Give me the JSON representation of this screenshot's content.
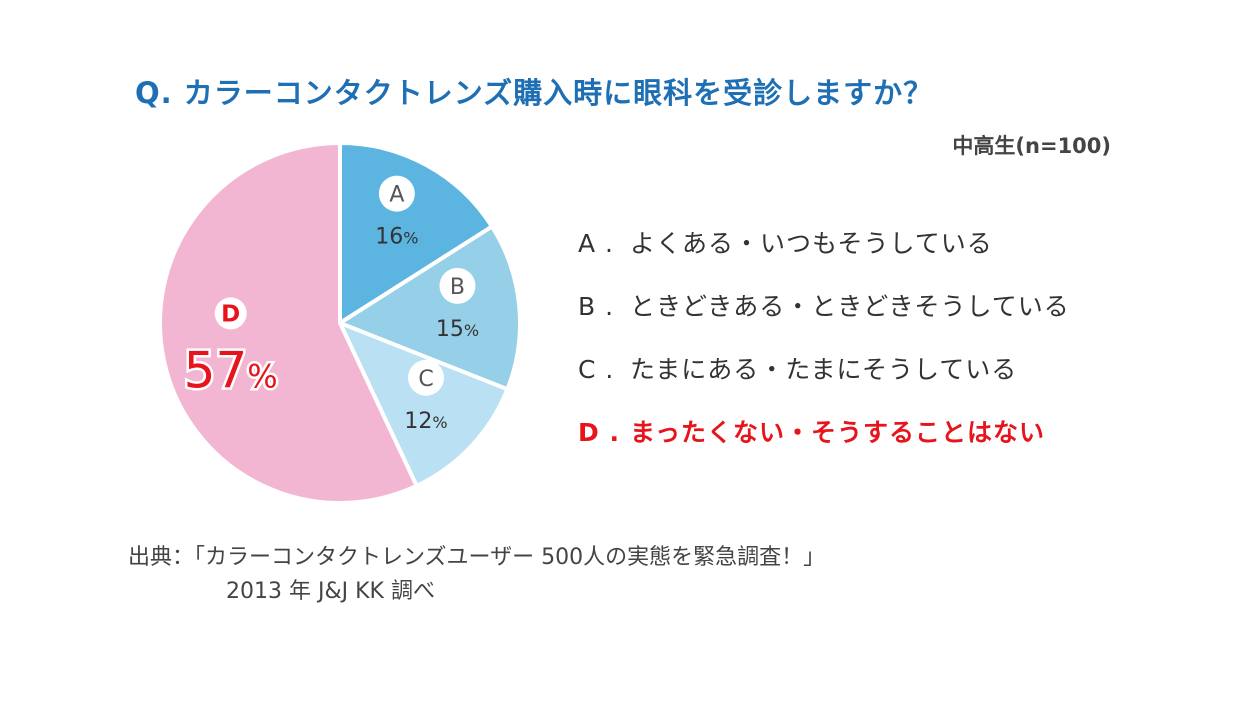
{
  "title": "Q. カラーコンタクトレンズ購入時に眼科を受診しますか？",
  "subtitle": "中高生(n=100)",
  "colors": {
    "title": "#1e6fb4",
    "highlight": "#e8141c",
    "text": "#333333"
  },
  "chart_data": {
    "type": "pie",
    "title": "Q. カラーコンタクトレンズ購入時に眼科を受診しますか？",
    "note": "中高生(n=100)",
    "slices": [
      {
        "key": "A",
        "label": "よくある・いつもそうしている",
        "value": 16,
        "value_label": "16%",
        "color": "#5bb5e0",
        "highlight": false
      },
      {
        "key": "B",
        "label": "ときどきある・ときどきそうしている",
        "value": 15,
        "value_label": "15%",
        "color": "#96cfe8",
        "highlight": false
      },
      {
        "key": "C",
        "label": "たまにある・たまにそうしている",
        "value": 12,
        "value_label": "12%",
        "color": "#b9e0f3",
        "highlight": false
      },
      {
        "key": "D",
        "label": "まったくない・そうすることはない",
        "value": 57,
        "value_label": "57%",
        "color": "#f3b6d2",
        "highlight": true
      }
    ],
    "start": "12 o'clock",
    "direction": "clockwise",
    "legend_position": "right"
  },
  "legend": {
    "items": [
      {
        "key": "A .",
        "text": "よくある・いつもそうしている"
      },
      {
        "key": "B .",
        "text": "ときどきある・ときどきそうしている"
      },
      {
        "key": "C .",
        "text": "たまにある・たまにそうしている"
      },
      {
        "key": "D .",
        "text": "まったくない・そうすることはない"
      }
    ]
  },
  "source": {
    "line1": "出典：「カラーコンタクトレンズユーザー 500人の実態を緊急調査！」",
    "line2": "2013 年  J&J KK 調べ"
  }
}
